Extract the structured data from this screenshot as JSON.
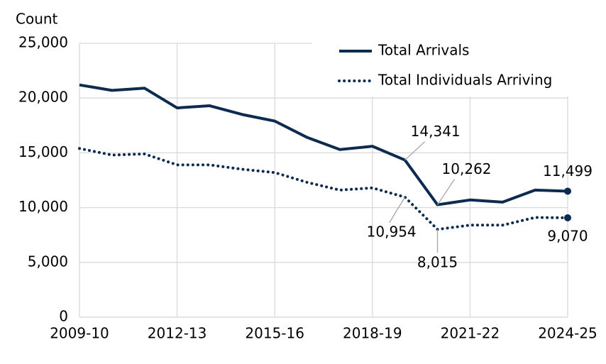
{
  "chart_data": {
    "type": "line",
    "y_label": "Count",
    "categories": [
      "2009-10",
      null,
      null,
      "2012-13",
      null,
      null,
      "2015-16",
      null,
      null,
      "2018-19",
      null,
      null,
      "2021-22",
      null,
      null,
      "2024-25"
    ],
    "series": [
      {
        "name": "Total Arrivals",
        "color": "#0d2b4e",
        "style": "solid",
        "values": [
          21200,
          20700,
          20900,
          19100,
          19300,
          18500,
          17900,
          16400,
          15300,
          15600,
          14341,
          10262,
          10700,
          10500,
          11600,
          11499
        ],
        "value_labels": [
          null,
          null,
          null,
          null,
          null,
          null,
          null,
          null,
          null,
          null,
          "14,341",
          "10,262",
          null,
          null,
          null,
          "11,499"
        ]
      },
      {
        "name": "Total Individuals Arriving",
        "color": "#0d2b4e",
        "style": "dotted",
        "values": [
          15400,
          14800,
          14900,
          13900,
          13900,
          13500,
          13200,
          12300,
          11600,
          11800,
          10954,
          8015,
          8400,
          8400,
          9100,
          9070
        ],
        "value_labels": [
          null,
          null,
          null,
          null,
          null,
          null,
          null,
          null,
          null,
          null,
          "10,954",
          "8,015",
          null,
          null,
          null,
          "9,070"
        ]
      }
    ],
    "ylim": [
      0,
      25000
    ],
    "yticks": [
      0,
      {
        "value": 5000,
        "label": "5,000"
      },
      {
        "value": 10000,
        "label": "10,000"
      },
      {
        "value": 15000,
        "label": "15,000"
      },
      {
        "value": 20000,
        "label": "20,000"
      },
      {
        "value": 25000,
        "label": "25,000"
      }
    ],
    "grid": true,
    "legend": "upper right"
  }
}
